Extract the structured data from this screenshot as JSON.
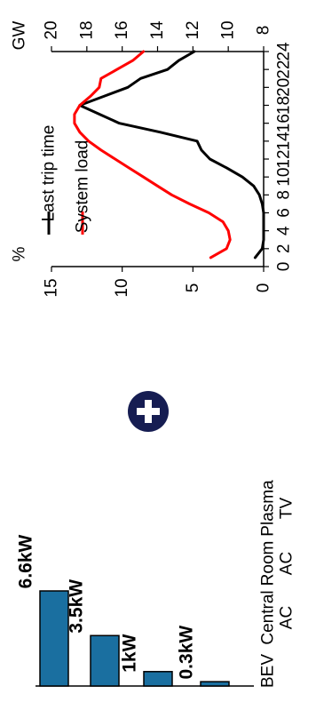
{
  "chart_data": [
    {
      "type": "line",
      "orientation": "rotated-90-clockwise",
      "x": [
        0,
        1,
        2,
        3,
        4,
        5,
        6,
        7,
        8,
        9,
        10,
        11,
        12,
        13,
        14,
        15,
        16,
        17,
        18,
        19,
        20,
        21,
        22,
        23,
        24
      ],
      "xlim": [
        0,
        24
      ],
      "x_ticks": [
        "0",
        "2",
        "4",
        "6",
        "8",
        "10",
        "12",
        "14",
        "16",
        "18",
        "20",
        "22",
        "24"
      ],
      "left_axis": {
        "unit": "%",
        "ylim": [
          0,
          15
        ],
        "ticks": [
          "0",
          "5",
          "10",
          "15"
        ]
      },
      "right_axis": {
        "unit": "GW",
        "ylim": [
          8,
          20
        ],
        "ticks": [
          "8",
          "10",
          "12",
          "14",
          "16",
          "18",
          "20"
        ]
      },
      "series": [
        {
          "name": "Last trip time",
          "axis": "left",
          "color": "#000000",
          "x": [
            1,
            2,
            3,
            4,
            5,
            6,
            7,
            8,
            9,
            10,
            11,
            12,
            13,
            14,
            15,
            16,
            17,
            18,
            19,
            20,
            21,
            22,
            23,
            24
          ],
          "values": [
            0.6,
            0.1,
            0.0,
            0.0,
            0.0,
            0.0,
            0.1,
            0.3,
            0.7,
            1.5,
            2.6,
            3.8,
            4.4,
            4.7,
            7.3,
            10.2,
            11.6,
            13.0,
            11.3,
            9.6,
            8.7,
            6.8,
            6.0,
            4.9
          ]
        },
        {
          "name": "System load",
          "axis": "right",
          "color": "#ff0000",
          "x": [
            1,
            2,
            3,
            4,
            5,
            6,
            7,
            8,
            9,
            10,
            11,
            12,
            13,
            14,
            15,
            16,
            17,
            18,
            19,
            20,
            21,
            22,
            23,
            24
          ],
          "values": [
            11.0,
            10.1,
            9.9,
            10.0,
            10.3,
            11.1,
            12.2,
            13.2,
            14.0,
            14.8,
            15.6,
            16.4,
            17.2,
            17.9,
            18.4,
            18.7,
            18.7,
            18.4,
            17.8,
            17.3,
            17.2,
            16.3,
            15.4,
            14.8
          ]
        }
      ],
      "legend": {
        "placement": "top",
        "entries": [
          "Last trip time",
          "System load"
        ]
      }
    },
    {
      "type": "bar",
      "orientation": "rotated-90-clockwise",
      "categories": [
        "BEV",
        "Central AC",
        "Room AC",
        "Plasma TV"
      ],
      "category_lines": [
        [
          "BEV"
        ],
        [
          "Central",
          "AC"
        ],
        [
          "Room",
          "AC"
        ],
        [
          "Plasma",
          "TV"
        ]
      ],
      "values": [
        6.6,
        3.5,
        1.0,
        0.3
      ],
      "data_labels": [
        "6.6kW",
        "3.5kW",
        "1kW",
        "0.3kW"
      ],
      "bar_color": "#1a6fa0",
      "bar_outline": "#000000"
    }
  ],
  "decoration": {
    "plus_icon": "plus-circle-icon",
    "plus_color": "#161d52"
  }
}
